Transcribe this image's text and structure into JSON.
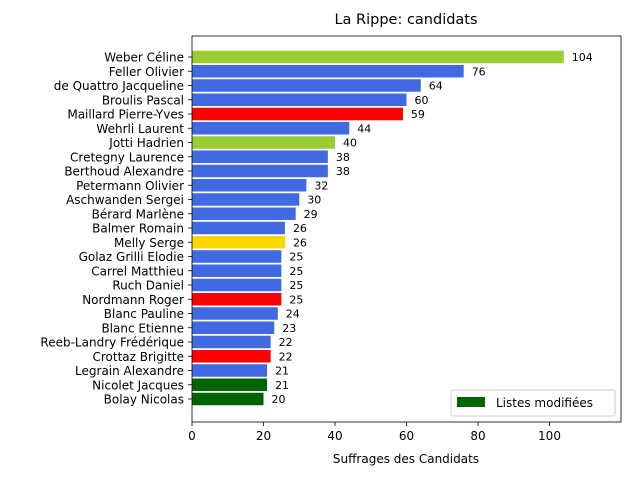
{
  "chart_data": {
    "type": "bar",
    "orientation": "horizontal",
    "title": "La Rippe: candidats",
    "xlabel": "Suffrages des Candidats",
    "ylabel": "",
    "xlim": [
      0,
      120
    ],
    "xticks": [
      0,
      20,
      40,
      60,
      80,
      100
    ],
    "grid": false,
    "legend": {
      "placement": "lower-right",
      "entries": [
        {
          "label": "Listes modifiées",
          "color": "#006400"
        }
      ]
    },
    "bars": [
      {
        "name": "Weber Céline",
        "value": 104,
        "color": "#9ACD32"
      },
      {
        "name": "Feller Olivier",
        "value": 76,
        "color": "#4169E1"
      },
      {
        "name": "de Quattro Jacqueline",
        "value": 64,
        "color": "#4169E1"
      },
      {
        "name": "Broulis Pascal",
        "value": 60,
        "color": "#4169E1"
      },
      {
        "name": "Maillard Pierre-Yves",
        "value": 59,
        "color": "#FF0000"
      },
      {
        "name": "Wehrli Laurent",
        "value": 44,
        "color": "#4169E1"
      },
      {
        "name": "Jotti Hadrien",
        "value": 40,
        "color": "#9ACD32"
      },
      {
        "name": "Cretegny Laurence",
        "value": 38,
        "color": "#4169E1"
      },
      {
        "name": "Berthoud Alexandre",
        "value": 38,
        "color": "#4169E1"
      },
      {
        "name": "Petermann Olivier",
        "value": 32,
        "color": "#4169E1"
      },
      {
        "name": "Aschwanden Sergei",
        "value": 30,
        "color": "#4169E1"
      },
      {
        "name": "Bérard Marlène",
        "value": 29,
        "color": "#4169E1"
      },
      {
        "name": "Balmer Romain",
        "value": 26,
        "color": "#4169E1"
      },
      {
        "name": "Melly Serge",
        "value": 26,
        "color": "#FFD700"
      },
      {
        "name": "Golaz Grilli Elodie",
        "value": 25,
        "color": "#4169E1"
      },
      {
        "name": "Carrel Matthieu",
        "value": 25,
        "color": "#4169E1"
      },
      {
        "name": "Ruch Daniel",
        "value": 25,
        "color": "#4169E1"
      },
      {
        "name": "Nordmann Roger",
        "value": 25,
        "color": "#FF0000"
      },
      {
        "name": "Blanc Pauline",
        "value": 24,
        "color": "#4169E1"
      },
      {
        "name": "Blanc Etienne",
        "value": 23,
        "color": "#4169E1"
      },
      {
        "name": "Reeb-Landry Frédérique",
        "value": 22,
        "color": "#4169E1"
      },
      {
        "name": "Crottaz Brigitte",
        "value": 22,
        "color": "#FF0000"
      },
      {
        "name": "Legrain Alexandre",
        "value": 21,
        "color": "#4169E1"
      },
      {
        "name": "Nicolet Jacques",
        "value": 21,
        "color": "#006400"
      },
      {
        "name": "Bolay Nicolas",
        "value": 20,
        "color": "#006400"
      }
    ]
  }
}
